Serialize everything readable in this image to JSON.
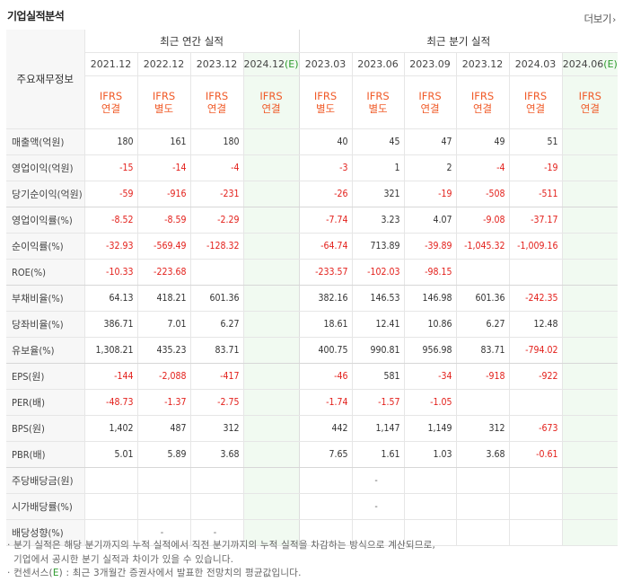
{
  "header": {
    "title": "기업실적분석",
    "more_label": "더보기",
    "more_arrow": "›"
  },
  "table": {
    "corner_label": "주요재무정보",
    "annual_label": "최근 연간 실적",
    "quarter_label": "최근 분기 실적",
    "periods": [
      {
        "label": "2021.12",
        "std1": "IFRS",
        "std2": "연결",
        "est": false
      },
      {
        "label": "2022.12",
        "std1": "IFRS",
        "std2": "별도",
        "est": false
      },
      {
        "label": "2023.12",
        "std1": "IFRS",
        "std2": "연결",
        "est": false
      },
      {
        "label": "2024.12",
        "est_mark": "(E)",
        "std1": "IFRS",
        "std2": "연결",
        "est": true
      },
      {
        "label": "2023.03",
        "std1": "IFRS",
        "std2": "별도",
        "est": false
      },
      {
        "label": "2023.06",
        "std1": "IFRS",
        "std2": "별도",
        "est": false
      },
      {
        "label": "2023.09",
        "std1": "IFRS",
        "std2": "연결",
        "est": false
      },
      {
        "label": "2023.12",
        "std1": "IFRS",
        "std2": "연결",
        "est": false
      },
      {
        "label": "2024.03",
        "std1": "IFRS",
        "std2": "연결",
        "est": false
      },
      {
        "label": "2024.06",
        "est_mark": "(E)",
        "std1": "IFRS",
        "std2": "연결",
        "est": true
      }
    ],
    "rows": [
      {
        "label": "매출액(억원)",
        "values": [
          "180",
          "161",
          "180",
          "",
          "40",
          "45",
          "47",
          "49",
          "51",
          ""
        ]
      },
      {
        "label": "영업이익(억원)",
        "values": [
          "-15",
          "-14",
          "-4",
          "",
          "-3",
          "1",
          "2",
          "-4",
          "-19",
          ""
        ]
      },
      {
        "label": "당기순이익(억원)",
        "values": [
          "-59",
          "-916",
          "-231",
          "",
          "-26",
          "321",
          "-19",
          "-508",
          "-511",
          ""
        ]
      },
      {
        "label": "영업이익률(%)",
        "values": [
          "-8.52",
          "-8.59",
          "-2.29",
          "",
          "-7.74",
          "3.23",
          "4.07",
          "-9.08",
          "-37.17",
          ""
        ]
      },
      {
        "label": "순이익률(%)",
        "values": [
          "-32.93",
          "-569.49",
          "-128.32",
          "",
          "-64.74",
          "713.89",
          "-39.89",
          "-1,045.32",
          "-1,009.16",
          ""
        ]
      },
      {
        "label": "ROE(%)",
        "values": [
          "-10.33",
          "-223.68",
          "",
          "",
          "-233.57",
          "-102.03",
          "-98.15",
          "",
          "",
          ""
        ]
      },
      {
        "label": "부채비율(%)",
        "values": [
          "64.13",
          "418.21",
          "601.36",
          "",
          "382.16",
          "146.53",
          "146.98",
          "601.36",
          "-242.35",
          ""
        ]
      },
      {
        "label": "당좌비율(%)",
        "values": [
          "386.71",
          "7.01",
          "6.27",
          "",
          "18.61",
          "12.41",
          "10.86",
          "6.27",
          "12.48",
          ""
        ]
      },
      {
        "label": "유보율(%)",
        "values": [
          "1,308.21",
          "435.23",
          "83.71",
          "",
          "400.75",
          "990.81",
          "956.98",
          "83.71",
          "-794.02",
          ""
        ]
      },
      {
        "label": "EPS(원)",
        "values": [
          "-144",
          "-2,088",
          "-417",
          "",
          "-46",
          "581",
          "-34",
          "-918",
          "-922",
          ""
        ]
      },
      {
        "label": "PER(배)",
        "values": [
          "-48.73",
          "-1.37",
          "-2.75",
          "",
          "-1.74",
          "-1.57",
          "-1.05",
          "",
          "",
          ""
        ]
      },
      {
        "label": "BPS(원)",
        "values": [
          "1,402",
          "487",
          "312",
          "",
          "442",
          "1,147",
          "1,149",
          "312",
          "-673",
          ""
        ]
      },
      {
        "label": "PBR(배)",
        "values": [
          "5.01",
          "5.89",
          "3.68",
          "",
          "7.65",
          "1.61",
          "1.03",
          "3.68",
          "-0.61",
          ""
        ]
      },
      {
        "label": "주당배당금(원)",
        "values": [
          "",
          "",
          "",
          "",
          "",
          "-",
          "",
          "",
          "",
          ""
        ]
      },
      {
        "label": "시가배당률(%)",
        "values": [
          "",
          "",
          "",
          "",
          "",
          "-",
          "",
          "",
          "",
          ""
        ]
      },
      {
        "label": "배당성향(%)",
        "values": [
          "",
          "-",
          "-",
          "",
          "",
          "",
          "",
          "",
          "",
          ""
        ]
      }
    ]
  },
  "notes": {
    "line1": "· 분기 실적은 해당 분기까지의 누적 실적에서 직전 분기까지의 누적 실적을 차감하는 방식으로 계산되므로,",
    "line2": "기업에서 공시한 분기 실적과 차이가 있을 수 있습니다.",
    "line3a": "· 컨센서스(",
    "line3e": "E",
    "line3b": ") : 최근 3개월간 증권사에서 발표한 전망치의 평균값입니다."
  }
}
